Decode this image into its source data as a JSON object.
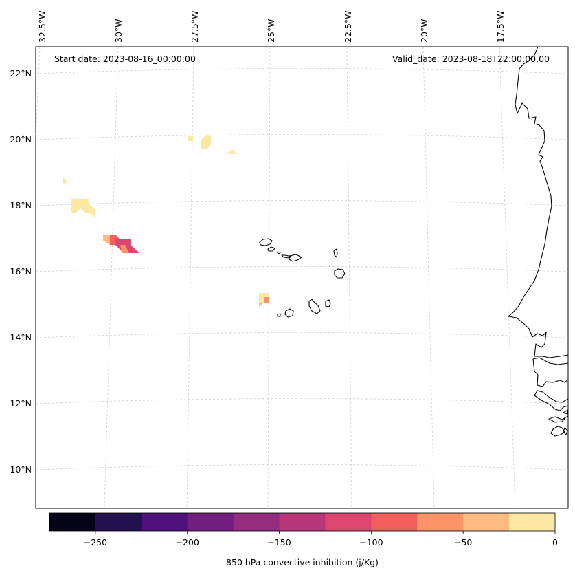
{
  "map": {
    "start_date": "Start date: 2023-08-16_00:00:00",
    "valid_date": "Valid_date: 2023-08-18T22:00:00.00",
    "lon_labels": [
      "32.5°W",
      "30°W",
      "27.5°W",
      "25°W",
      "22.5°W",
      "20°W",
      "17.5°W"
    ],
    "lat_labels": [
      "22°N",
      "20°N",
      "18°N",
      "16°N",
      "14°N",
      "12°N",
      "10°N"
    ],
    "gridlines": true,
    "coastline_color": "#000000",
    "gridline_color": "#cccccc"
  },
  "colorbar": {
    "label": "850 hPa convective inhibition (j/Kg)",
    "ticks": [
      "−250",
      "−200",
      "−150",
      "−100",
      "−50",
      "0"
    ],
    "levels": [
      -275,
      -250,
      -225,
      -200,
      -175,
      -150,
      -125,
      -100,
      -75,
      -50,
      -25,
      0
    ],
    "colors": [
      "#050417",
      "#221150",
      "#4f127b",
      "#721f81",
      "#942c80",
      "#b6377a",
      "#db476f",
      "#f1605d",
      "#fd9468",
      "#febb81",
      "#fde8a3"
    ],
    "placement": "bottom"
  }
}
